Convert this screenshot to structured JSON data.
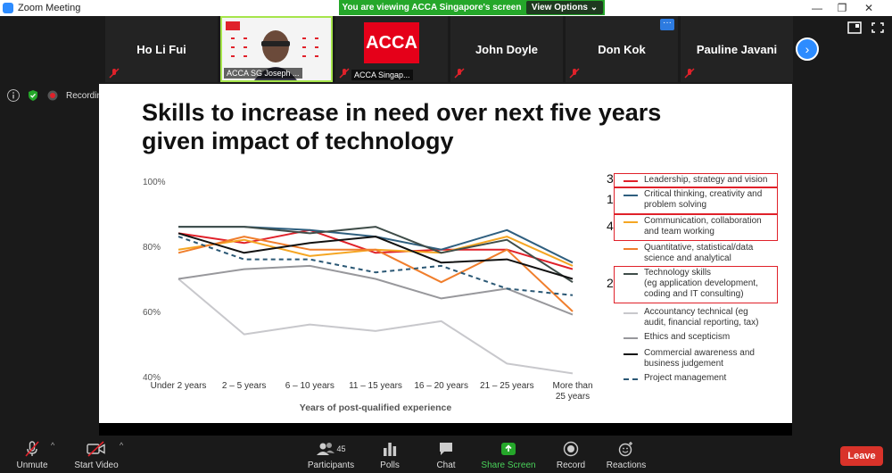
{
  "window": {
    "title": "Zoom Meeting"
  },
  "share_banner": {
    "message": "You are viewing ACCA Singapore's screen",
    "view_options": "View Options ⌄"
  },
  "gallery": {
    "participants": [
      {
        "name": "Ho Li Fui",
        "type": "name"
      },
      {
        "name": "ACCA SG Joseph ...",
        "type": "video"
      },
      {
        "name": "ACCA Singap...",
        "type": "logo",
        "logo_text": "ACCA"
      },
      {
        "name": "John Doyle",
        "type": "name"
      },
      {
        "name": "Don Kok",
        "type": "name"
      },
      {
        "name": "Pauline Javani",
        "type": "name"
      }
    ],
    "more_dots": "···"
  },
  "status": {
    "recording_label": "Recordin"
  },
  "slide": {
    "title_line1": "Skills to increase in need over next five years",
    "title_line2": "given impact of technology"
  },
  "chart_data": {
    "type": "line",
    "xlabel": "Years of post-qualified experience",
    "ylabel": "",
    "ylim": [
      40,
      100
    ],
    "yticks": [
      "40%",
      "60%",
      "80%",
      "100%"
    ],
    "categories": [
      "Under 2 years",
      "2 – 5 years",
      "6 – 10 years",
      "11 – 15 years",
      "16 – 20 years",
      "21 – 25 years",
      "More than 25 years"
    ],
    "series": [
      {
        "name": "Leadership, strategy and vision",
        "color": "#e0212a",
        "dashed": false,
        "values": [
          84,
          81,
          85,
          78,
          79,
          79,
          73
        ],
        "rank": "3"
      },
      {
        "name": "Critical thinking, creativity and problem solving",
        "color": "#2f5f7f",
        "dashed": false,
        "values": [
          86,
          86,
          85,
          83,
          79,
          85,
          75
        ],
        "rank": "1"
      },
      {
        "name": "Communication, collaboration and team working",
        "color": "#f5a623",
        "dashed": false,
        "values": [
          79,
          82,
          77,
          79,
          78,
          83,
          74
        ],
        "rank": "4"
      },
      {
        "name": "Quantitative, statistical/data science and analytical",
        "color": "#f07e2c",
        "dashed": false,
        "values": [
          78,
          83,
          79,
          79,
          69,
          79,
          60
        ],
        "rank": ""
      },
      {
        "name": "Technology skills (eg application development, coding and IT consulting)",
        "color": "#3f4d49",
        "dashed": false,
        "values": [
          86,
          86,
          84,
          86,
          78,
          82,
          69
        ],
        "rank": "2"
      },
      {
        "name": "Accountancy technical (eg audit, financial reporting, tax)",
        "color": "#c8c8cc",
        "dashed": false,
        "values": [
          70,
          53,
          56,
          54,
          57,
          44,
          41
        ],
        "rank": ""
      },
      {
        "name": "Ethics and scepticism",
        "color": "#98989c",
        "dashed": false,
        "values": [
          70,
          73,
          74,
          70,
          64,
          67,
          59
        ],
        "rank": ""
      },
      {
        "name": "Commercial awareness and business judgement",
        "color": "#111111",
        "dashed": false,
        "values": [
          84,
          78,
          81,
          83,
          75,
          76,
          70
        ],
        "rank": ""
      },
      {
        "name": "Project management",
        "color": "#2b5875",
        "dashed": true,
        "values": [
          83,
          76,
          76,
          72,
          74,
          67,
          65
        ],
        "rank": ""
      }
    ],
    "legend_labels": [
      [
        "Leadership, strategy and vision"
      ],
      [
        "Critical thinking, creativity and",
        "problem solving"
      ],
      [
        "Communication, collaboration",
        "and team working"
      ],
      [
        "Quantitative, statistical/data",
        "science and analytical"
      ],
      [
        "Technology skills",
        "(eg application development,",
        "coding and IT consulting)"
      ],
      [
        "Accountancy technical (eg",
        "audit, financial reporting, tax)"
      ],
      [
        "Ethics and scepticism"
      ],
      [
        "Commercial awareness and",
        "business judgement"
      ],
      [
        "Project management"
      ]
    ],
    "x_tick_labels": [
      [
        "Under 2 years"
      ],
      [
        "2 – 5 years"
      ],
      [
        "6 – 10 years"
      ],
      [
        "11 – 15 years"
      ],
      [
        "16 – 20 years"
      ],
      [
        "21 – 25 years"
      ],
      [
        "More than",
        "25 years"
      ]
    ],
    "grid": false,
    "legend_position": "right"
  },
  "toolbar": {
    "unmute": "Unmute",
    "start_video": "Start Video",
    "participants": "Participants",
    "participants_count": "45",
    "polls": "Polls",
    "chat": "Chat",
    "share_screen": "Share Screen",
    "record": "Record",
    "reactions": "Reactions",
    "leave": "Leave"
  },
  "colors": {
    "share_green": "#25a72a",
    "zoom_blue": "#2d8cff",
    "leave_red": "#d9332a",
    "acca_red": "#e50019"
  }
}
